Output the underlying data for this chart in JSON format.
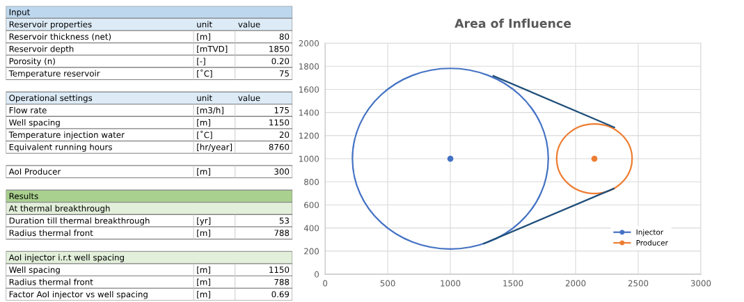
{
  "chart_data": [
    {
      "type": "other",
      "cell_labels": [
        [
          "Input"
        ],
        [
          "Reservoir properties",
          "unit",
          "value"
        ],
        [
          "Reservoir thickness (net)",
          "[m]",
          "80"
        ],
        [
          "Reservoir depth",
          "[mTVD]",
          "1850"
        ],
        [
          "Porosity (n)",
          "[-]",
          "0.20"
        ],
        [
          "Temperature reservoir",
          "[˚C]",
          "75"
        ],
        null,
        [
          "Operational settings",
          "unit",
          "value"
        ],
        [
          "Flow rate",
          "[m3/h]",
          "175"
        ],
        [
          "Well spacing",
          "[m]",
          "1150"
        ],
        [
          "Temperature injection water",
          "[˚C]",
          "20"
        ],
        [
          "Equivalent running hours",
          "[hr/year]",
          "8760"
        ],
        null,
        [
          "AoI Producer",
          "[m]",
          "300"
        ],
        null,
        [
          "Results"
        ],
        [
          "At thermal breakthrough"
        ],
        [
          "Duration till thermal breakthrough",
          "[yr]",
          "53"
        ],
        [
          "Radius thermal front",
          "[m]",
          "788"
        ],
        null,
        [
          "AoI injector i.r.t well spacing"
        ],
        [
          "Well spacing",
          "[m]",
          "1150"
        ],
        [
          "Radius thermal front",
          "[m]",
          "788"
        ],
        [
          "Factor AoI injector vs well spacing",
          "[m]",
          "0.69"
        ]
      ],
      "colors": [
        "#bdd7ee",
        "#ddebf7",
        null,
        null,
        null,
        null,
        null,
        "#ddebf7",
        null,
        null,
        null,
        null,
        null,
        null,
        null,
        "#a9d08e",
        "#e2efda",
        null,
        null,
        null,
        "#e2efda",
        null,
        null,
        null
      ]
    },
    {
      "type": "line",
      "title": "Area of Influence",
      "xlim": [
        0,
        3000
      ],
      "xticks": [
        0,
        500,
        1000,
        1500,
        2000,
        2500,
        3000
      ],
      "ylim": [
        0,
        2000
      ],
      "yticks": [
        0,
        200,
        400,
        600,
        800,
        1000,
        1200,
        1400,
        1600,
        1800,
        2000
      ],
      "grid": true,
      "legend": "bottom right",
      "series": [
        {
          "type": "line",
          "color": "#1f4e79",
          "marker": "none",
          "x": [
            1343,
            2309
          ],
          "values": [
            1717,
            1271
          ]
        },
        {
          "type": "line",
          "color": "#1f4e79",
          "marker": "none",
          "x": [
            1267,
            2304
          ],
          "values": [
            265,
            741
          ]
        },
        {
          "name": "Injector",
          "type": "scatter",
          "color": "#4472c4",
          "marker": "circle",
          "x": [
            1000
          ],
          "values": [
            1000
          ]
        },
        {
          "name": "Producer",
          "type": "scatter",
          "color": "#ed7d31",
          "marker": "circle",
          "x": [
            2150
          ],
          "values": [
            1000
          ]
        }
      ]
    }
  ]
}
